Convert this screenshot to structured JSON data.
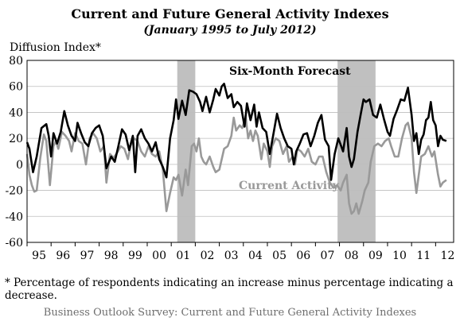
{
  "chart_data": {
    "type": "line",
    "title": "Current and Future General Activity Indexes",
    "subtitle": "(January 1995 to July 2012)",
    "ylabel": "Diffusion Index*",
    "xlabel": "",
    "ylim": [
      -60,
      80
    ],
    "yticks": [
      -60,
      -40,
      -20,
      0,
      20,
      40,
      60,
      80
    ],
    "xlim": [
      1995.0,
      2012.75
    ],
    "xtick_labels": [
      "95",
      "96",
      "97",
      "98",
      "99",
      "00",
      "01",
      "02",
      "03",
      "04",
      "05",
      "06",
      "07",
      "08",
      "09",
      "10",
      "11",
      "12"
    ],
    "grid": "horizontal",
    "recessions": [
      [
        2001.25,
        2002.0
      ],
      [
        2007.92,
        2009.5
      ]
    ],
    "series": [
      {
        "name": "Six-Month Forecast",
        "label_text": "Six-Month Forecast",
        "color": "#000000",
        "points": [
          [
            1995.0,
            17
          ],
          [
            1995.1,
            12
          ],
          [
            1995.25,
            -6
          ],
          [
            1995.4,
            6
          ],
          [
            1995.6,
            28
          ],
          [
            1995.8,
            31
          ],
          [
            1995.9,
            22
          ],
          [
            1996.0,
            6
          ],
          [
            1996.1,
            24
          ],
          [
            1996.25,
            16
          ],
          [
            1996.4,
            25
          ],
          [
            1996.55,
            41
          ],
          [
            1996.7,
            30
          ],
          [
            1996.85,
            22
          ],
          [
            1997.0,
            18
          ],
          [
            1997.1,
            32
          ],
          [
            1997.25,
            24
          ],
          [
            1997.4,
            17
          ],
          [
            1997.55,
            14
          ],
          [
            1997.7,
            24
          ],
          [
            1997.85,
            28
          ],
          [
            1998.0,
            30
          ],
          [
            1998.15,
            22
          ],
          [
            1998.3,
            -3
          ],
          [
            1998.5,
            6
          ],
          [
            1998.65,
            2
          ],
          [
            1998.8,
            14
          ],
          [
            1998.95,
            27
          ],
          [
            1999.1,
            23
          ],
          [
            1999.25,
            11
          ],
          [
            1999.4,
            22
          ],
          [
            1999.5,
            -6
          ],
          [
            1999.6,
            22
          ],
          [
            1999.75,
            27
          ],
          [
            1999.9,
            20
          ],
          [
            2000.05,
            16
          ],
          [
            2000.2,
            10
          ],
          [
            2000.35,
            17
          ],
          [
            2000.5,
            4
          ],
          [
            2000.65,
            -2
          ],
          [
            2000.8,
            -10
          ],
          [
            2000.95,
            20
          ],
          [
            2001.1,
            34
          ],
          [
            2001.2,
            50
          ],
          [
            2001.3,
            35
          ],
          [
            2001.45,
            49
          ],
          [
            2001.6,
            38
          ],
          [
            2001.75,
            57
          ],
          [
            2001.9,
            56
          ],
          [
            2002.05,
            54
          ],
          [
            2002.2,
            48
          ],
          [
            2002.3,
            41
          ],
          [
            2002.45,
            52
          ],
          [
            2002.6,
            40
          ],
          [
            2002.75,
            50
          ],
          [
            2002.85,
            58
          ],
          [
            2003.0,
            53
          ],
          [
            2003.1,
            60
          ],
          [
            2003.2,
            62
          ],
          [
            2003.35,
            51
          ],
          [
            2003.5,
            54
          ],
          [
            2003.6,
            44
          ],
          [
            2003.75,
            48
          ],
          [
            2003.9,
            45
          ],
          [
            2004.05,
            29
          ],
          [
            2004.15,
            47
          ],
          [
            2004.3,
            34
          ],
          [
            2004.45,
            46
          ],
          [
            2004.55,
            29
          ],
          [
            2004.65,
            40
          ],
          [
            2004.8,
            28
          ],
          [
            2004.95,
            25
          ],
          [
            2005.1,
            8
          ],
          [
            2005.2,
            18
          ],
          [
            2005.4,
            39
          ],
          [
            2005.55,
            28
          ],
          [
            2005.7,
            20
          ],
          [
            2005.85,
            14
          ],
          [
            2006.0,
            12
          ],
          [
            2006.1,
            0
          ],
          [
            2006.2,
            10
          ],
          [
            2006.35,
            16
          ],
          [
            2006.5,
            23
          ],
          [
            2006.65,
            24
          ],
          [
            2006.8,
            14
          ],
          [
            2006.95,
            22
          ],
          [
            2007.1,
            32
          ],
          [
            2007.25,
            38
          ],
          [
            2007.4,
            19
          ],
          [
            2007.55,
            14
          ],
          [
            2007.65,
            -12
          ],
          [
            2007.8,
            8
          ],
          [
            2007.95,
            20
          ],
          [
            2008.05,
            15
          ],
          [
            2008.15,
            10
          ],
          [
            2008.3,
            28
          ],
          [
            2008.4,
            6
          ],
          [
            2008.5,
            -2
          ],
          [
            2008.6,
            4
          ],
          [
            2008.75,
            25
          ],
          [
            2008.9,
            40
          ],
          [
            2009.0,
            50
          ],
          [
            2009.1,
            48
          ],
          [
            2009.25,
            50
          ],
          [
            2009.4,
            38
          ],
          [
            2009.55,
            36
          ],
          [
            2009.7,
            46
          ],
          [
            2009.85,
            35
          ],
          [
            2010.0,
            25
          ],
          [
            2010.1,
            22
          ],
          [
            2010.25,
            35
          ],
          [
            2010.4,
            42
          ],
          [
            2010.55,
            50
          ],
          [
            2010.7,
            49
          ],
          [
            2010.85,
            59
          ],
          [
            2011.0,
            38
          ],
          [
            2011.1,
            18
          ],
          [
            2011.2,
            24
          ],
          [
            2011.3,
            8
          ],
          [
            2011.4,
            19
          ],
          [
            2011.5,
            23
          ],
          [
            2011.6,
            34
          ],
          [
            2011.7,
            36
          ],
          [
            2011.8,
            48
          ],
          [
            2011.9,
            34
          ],
          [
            2012.0,
            30
          ],
          [
            2012.1,
            14
          ],
          [
            2012.2,
            22
          ],
          [
            2012.3,
            19
          ],
          [
            2012.45,
            18
          ]
        ]
      },
      {
        "name": "Current Activity",
        "label_text": "Current Activity",
        "color": "#999999",
        "points": [
          [
            1995.0,
            8
          ],
          [
            1995.1,
            -8
          ],
          [
            1995.2,
            -16
          ],
          [
            1995.3,
            -21
          ],
          [
            1995.4,
            -20
          ],
          [
            1995.55,
            5
          ],
          [
            1995.7,
            23
          ],
          [
            1995.8,
            18
          ],
          [
            1995.95,
            -16
          ],
          [
            1996.1,
            14
          ],
          [
            1996.2,
            18
          ],
          [
            1996.3,
            12
          ],
          [
            1996.45,
            25
          ],
          [
            1996.6,
            22
          ],
          [
            1996.75,
            18
          ],
          [
            1996.85,
            10
          ],
          [
            1997.0,
            24
          ],
          [
            1997.15,
            18
          ],
          [
            1997.3,
            16
          ],
          [
            1997.45,
            0
          ],
          [
            1997.6,
            20
          ],
          [
            1997.75,
            24
          ],
          [
            1997.9,
            20
          ],
          [
            1998.05,
            10
          ],
          [
            1998.2,
            14
          ],
          [
            1998.3,
            -14
          ],
          [
            1998.45,
            8
          ],
          [
            1998.6,
            5
          ],
          [
            1998.75,
            9
          ],
          [
            1998.9,
            14
          ],
          [
            1999.05,
            12
          ],
          [
            1999.2,
            4
          ],
          [
            1999.3,
            14
          ],
          [
            1999.45,
            20
          ],
          [
            1999.6,
            18
          ],
          [
            1999.75,
            10
          ],
          [
            1999.9,
            6
          ],
          [
            2000.05,
            14
          ],
          [
            2000.2,
            8
          ],
          [
            2000.35,
            6
          ],
          [
            2000.5,
            10
          ],
          [
            2000.65,
            -4
          ],
          [
            2000.8,
            -36
          ],
          [
            2000.95,
            -22
          ],
          [
            2001.1,
            -10
          ],
          [
            2001.2,
            -12
          ],
          [
            2001.3,
            -8
          ],
          [
            2001.45,
            -24
          ],
          [
            2001.6,
            -4
          ],
          [
            2001.7,
            -16
          ],
          [
            2001.85,
            14
          ],
          [
            2001.95,
            16
          ],
          [
            2002.05,
            10
          ],
          [
            2002.15,
            20
          ],
          [
            2002.25,
            6
          ],
          [
            2002.35,
            2
          ],
          [
            2002.45,
            0
          ],
          [
            2002.6,
            6
          ],
          [
            2002.75,
            -2
          ],
          [
            2002.85,
            -6
          ],
          [
            2003.0,
            -4
          ],
          [
            2003.1,
            4
          ],
          [
            2003.2,
            12
          ],
          [
            2003.35,
            14
          ],
          [
            2003.5,
            22
          ],
          [
            2003.6,
            36
          ],
          [
            2003.7,
            26
          ],
          [
            2003.85,
            30
          ],
          [
            2003.95,
            28
          ],
          [
            2004.1,
            36
          ],
          [
            2004.2,
            20
          ],
          [
            2004.3,
            26
          ],
          [
            2004.4,
            18
          ],
          [
            2004.5,
            26
          ],
          [
            2004.6,
            22
          ],
          [
            2004.75,
            4
          ],
          [
            2004.85,
            16
          ],
          [
            2005.0,
            10
          ],
          [
            2005.1,
            -2
          ],
          [
            2005.2,
            14
          ],
          [
            2005.35,
            20
          ],
          [
            2005.5,
            18
          ],
          [
            2005.65,
            8
          ],
          [
            2005.8,
            14
          ],
          [
            2005.9,
            2
          ],
          [
            2006.05,
            6
          ],
          [
            2006.15,
            0
          ],
          [
            2006.25,
            12
          ],
          [
            2006.4,
            10
          ],
          [
            2006.55,
            6
          ],
          [
            2006.7,
            12
          ],
          [
            2006.85,
            2
          ],
          [
            2007.0,
            0
          ],
          [
            2007.15,
            6
          ],
          [
            2007.3,
            6
          ],
          [
            2007.45,
            -6
          ],
          [
            2007.6,
            -14
          ],
          [
            2007.75,
            -18
          ],
          [
            2007.9,
            -16
          ],
          [
            2008.05,
            -20
          ],
          [
            2008.15,
            -14
          ],
          [
            2008.3,
            -8
          ],
          [
            2008.4,
            -30
          ],
          [
            2008.5,
            -38
          ],
          [
            2008.6,
            -36
          ],
          [
            2008.7,
            -30
          ],
          [
            2008.8,
            -38
          ],
          [
            2008.95,
            -28
          ],
          [
            2009.05,
            -20
          ],
          [
            2009.2,
            -14
          ],
          [
            2009.3,
            2
          ],
          [
            2009.45,
            14
          ],
          [
            2009.6,
            16
          ],
          [
            2009.75,
            14
          ],
          [
            2009.9,
            18
          ],
          [
            2010.05,
            20
          ],
          [
            2010.15,
            14
          ],
          [
            2010.3,
            6
          ],
          [
            2010.45,
            6
          ],
          [
            2010.6,
            20
          ],
          [
            2010.75,
            30
          ],
          [
            2010.85,
            32
          ],
          [
            2011.0,
            20
          ],
          [
            2011.1,
            -6
          ],
          [
            2011.2,
            -22
          ],
          [
            2011.3,
            -8
          ],
          [
            2011.4,
            6
          ],
          [
            2011.55,
            8
          ],
          [
            2011.7,
            14
          ],
          [
            2011.85,
            6
          ],
          [
            2011.95,
            10
          ],
          [
            2012.1,
            -8
          ],
          [
            2012.2,
            -17
          ],
          [
            2012.3,
            -14
          ],
          [
            2012.45,
            -12
          ]
        ]
      }
    ]
  },
  "footnote": "* Percentage of respondents indicating an increase minus percentage indicating a decrease.",
  "source": "Business Outlook Survey: Current and Future General Activity Indexes"
}
